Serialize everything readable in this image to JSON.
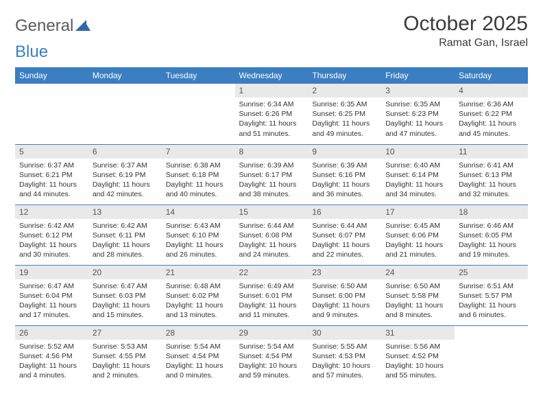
{
  "brand": {
    "part1": "General",
    "part2": "Blue"
  },
  "title": "October 2025",
  "location": "Ramat Gan, Israel",
  "colors": {
    "header_bg": "#3b7ec1",
    "header_text": "#ffffff",
    "day_number_bg": "#e9e9e9",
    "day_number_text": "#555555",
    "body_text": "#333333",
    "rule": "#3b7ec1",
    "page_bg": "#ffffff",
    "logo_gray": "#5b5b5b",
    "logo_blue": "#3b7ec1"
  },
  "typography": {
    "title_fontsize": 30,
    "location_fontsize": 16,
    "header_fontsize": 12,
    "daynum_fontsize": 12,
    "detail_fontsize": 10.5
  },
  "weekdays": [
    "Sunday",
    "Monday",
    "Tuesday",
    "Wednesday",
    "Thursday",
    "Friday",
    "Saturday"
  ],
  "weeks": [
    [
      {
        "n": "",
        "sr": "",
        "ss": "",
        "dl": ""
      },
      {
        "n": "",
        "sr": "",
        "ss": "",
        "dl": ""
      },
      {
        "n": "",
        "sr": "",
        "ss": "",
        "dl": ""
      },
      {
        "n": "1",
        "sr": "Sunrise: 6:34 AM",
        "ss": "Sunset: 6:26 PM",
        "dl": "Daylight: 11 hours and 51 minutes."
      },
      {
        "n": "2",
        "sr": "Sunrise: 6:35 AM",
        "ss": "Sunset: 6:25 PM",
        "dl": "Daylight: 11 hours and 49 minutes."
      },
      {
        "n": "3",
        "sr": "Sunrise: 6:35 AM",
        "ss": "Sunset: 6:23 PM",
        "dl": "Daylight: 11 hours and 47 minutes."
      },
      {
        "n": "4",
        "sr": "Sunrise: 6:36 AM",
        "ss": "Sunset: 6:22 PM",
        "dl": "Daylight: 11 hours and 45 minutes."
      }
    ],
    [
      {
        "n": "5",
        "sr": "Sunrise: 6:37 AM",
        "ss": "Sunset: 6:21 PM",
        "dl": "Daylight: 11 hours and 44 minutes."
      },
      {
        "n": "6",
        "sr": "Sunrise: 6:37 AM",
        "ss": "Sunset: 6:19 PM",
        "dl": "Daylight: 11 hours and 42 minutes."
      },
      {
        "n": "7",
        "sr": "Sunrise: 6:38 AM",
        "ss": "Sunset: 6:18 PM",
        "dl": "Daylight: 11 hours and 40 minutes."
      },
      {
        "n": "8",
        "sr": "Sunrise: 6:39 AM",
        "ss": "Sunset: 6:17 PM",
        "dl": "Daylight: 11 hours and 38 minutes."
      },
      {
        "n": "9",
        "sr": "Sunrise: 6:39 AM",
        "ss": "Sunset: 6:16 PM",
        "dl": "Daylight: 11 hours and 36 minutes."
      },
      {
        "n": "10",
        "sr": "Sunrise: 6:40 AM",
        "ss": "Sunset: 6:14 PM",
        "dl": "Daylight: 11 hours and 34 minutes."
      },
      {
        "n": "11",
        "sr": "Sunrise: 6:41 AM",
        "ss": "Sunset: 6:13 PM",
        "dl": "Daylight: 11 hours and 32 minutes."
      }
    ],
    [
      {
        "n": "12",
        "sr": "Sunrise: 6:42 AM",
        "ss": "Sunset: 6:12 PM",
        "dl": "Daylight: 11 hours and 30 minutes."
      },
      {
        "n": "13",
        "sr": "Sunrise: 6:42 AM",
        "ss": "Sunset: 6:11 PM",
        "dl": "Daylight: 11 hours and 28 minutes."
      },
      {
        "n": "14",
        "sr": "Sunrise: 6:43 AM",
        "ss": "Sunset: 6:10 PM",
        "dl": "Daylight: 11 hours and 26 minutes."
      },
      {
        "n": "15",
        "sr": "Sunrise: 6:44 AM",
        "ss": "Sunset: 6:08 PM",
        "dl": "Daylight: 11 hours and 24 minutes."
      },
      {
        "n": "16",
        "sr": "Sunrise: 6:44 AM",
        "ss": "Sunset: 6:07 PM",
        "dl": "Daylight: 11 hours and 22 minutes."
      },
      {
        "n": "17",
        "sr": "Sunrise: 6:45 AM",
        "ss": "Sunset: 6:06 PM",
        "dl": "Daylight: 11 hours and 21 minutes."
      },
      {
        "n": "18",
        "sr": "Sunrise: 6:46 AM",
        "ss": "Sunset: 6:05 PM",
        "dl": "Daylight: 11 hours and 19 minutes."
      }
    ],
    [
      {
        "n": "19",
        "sr": "Sunrise: 6:47 AM",
        "ss": "Sunset: 6:04 PM",
        "dl": "Daylight: 11 hours and 17 minutes."
      },
      {
        "n": "20",
        "sr": "Sunrise: 6:47 AM",
        "ss": "Sunset: 6:03 PM",
        "dl": "Daylight: 11 hours and 15 minutes."
      },
      {
        "n": "21",
        "sr": "Sunrise: 6:48 AM",
        "ss": "Sunset: 6:02 PM",
        "dl": "Daylight: 11 hours and 13 minutes."
      },
      {
        "n": "22",
        "sr": "Sunrise: 6:49 AM",
        "ss": "Sunset: 6:01 PM",
        "dl": "Daylight: 11 hours and 11 minutes."
      },
      {
        "n": "23",
        "sr": "Sunrise: 6:50 AM",
        "ss": "Sunset: 6:00 PM",
        "dl": "Daylight: 11 hours and 9 minutes."
      },
      {
        "n": "24",
        "sr": "Sunrise: 6:50 AM",
        "ss": "Sunset: 5:58 PM",
        "dl": "Daylight: 11 hours and 8 minutes."
      },
      {
        "n": "25",
        "sr": "Sunrise: 6:51 AM",
        "ss": "Sunset: 5:57 PM",
        "dl": "Daylight: 11 hours and 6 minutes."
      }
    ],
    [
      {
        "n": "26",
        "sr": "Sunrise: 5:52 AM",
        "ss": "Sunset: 4:56 PM",
        "dl": "Daylight: 11 hours and 4 minutes."
      },
      {
        "n": "27",
        "sr": "Sunrise: 5:53 AM",
        "ss": "Sunset: 4:55 PM",
        "dl": "Daylight: 11 hours and 2 minutes."
      },
      {
        "n": "28",
        "sr": "Sunrise: 5:54 AM",
        "ss": "Sunset: 4:54 PM",
        "dl": "Daylight: 11 hours and 0 minutes."
      },
      {
        "n": "29",
        "sr": "Sunrise: 5:54 AM",
        "ss": "Sunset: 4:54 PM",
        "dl": "Daylight: 10 hours and 59 minutes."
      },
      {
        "n": "30",
        "sr": "Sunrise: 5:55 AM",
        "ss": "Sunset: 4:53 PM",
        "dl": "Daylight: 10 hours and 57 minutes."
      },
      {
        "n": "31",
        "sr": "Sunrise: 5:56 AM",
        "ss": "Sunset: 4:52 PM",
        "dl": "Daylight: 10 hours and 55 minutes."
      },
      {
        "n": "",
        "sr": "",
        "ss": "",
        "dl": ""
      }
    ]
  ]
}
